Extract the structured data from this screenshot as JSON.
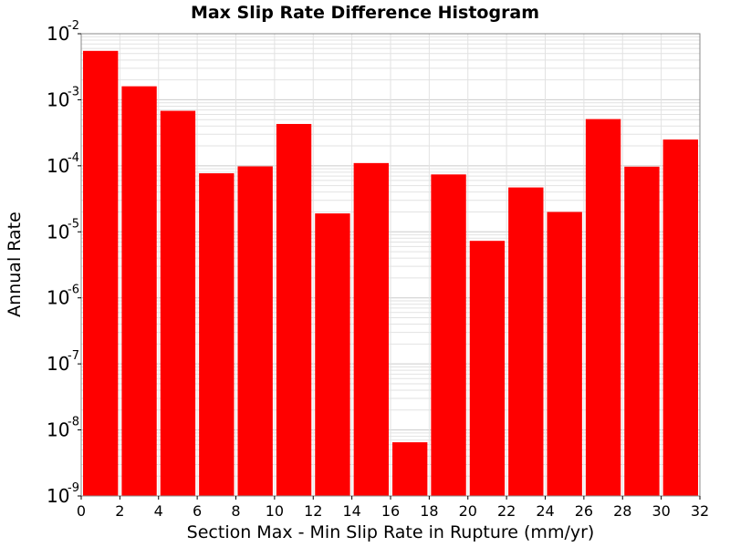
{
  "chart_data": {
    "type": "bar",
    "title": "Max Slip Rate Difference Histogram",
    "xlabel": "Section Max - Min Slip Rate in Rupture (mm/yr)",
    "ylabel": "Annual Rate",
    "yscale": "log",
    "xlim": [
      0,
      32
    ],
    "ylim": [
      1e-09,
      0.01
    ],
    "x_ticks": [
      "0",
      "2",
      "4",
      "6",
      "8",
      "10",
      "12",
      "14",
      "16",
      "18",
      "20",
      "22",
      "24",
      "26",
      "28",
      "30",
      "32"
    ],
    "y_ticks": [
      {
        "base": "10",
        "exp": "-9",
        "value": 1e-09
      },
      {
        "base": "10",
        "exp": "-8",
        "value": 1e-08
      },
      {
        "base": "10",
        "exp": "-7",
        "value": 1e-07
      },
      {
        "base": "10",
        "exp": "-6",
        "value": 1e-06
      },
      {
        "base": "10",
        "exp": "-5",
        "value": 1e-05
      },
      {
        "base": "10",
        "exp": "-4",
        "value": 0.0001
      },
      {
        "base": "10",
        "exp": "-3",
        "value": 0.001
      },
      {
        "base": "10",
        "exp": "-2",
        "value": 0.01
      }
    ],
    "bin_width": 2,
    "bins": [
      {
        "x": 1,
        "value": 0.0055
      },
      {
        "x": 3,
        "value": 0.0016
      },
      {
        "x": 5,
        "value": 0.00068
      },
      {
        "x": 7,
        "value": 7.7e-05
      },
      {
        "x": 9,
        "value": 9.8e-05
      },
      {
        "x": 11,
        "value": 0.00043
      },
      {
        "x": 13,
        "value": 1.9e-05
      },
      {
        "x": 15,
        "value": 0.00011
      },
      {
        "x": 17,
        "value": 6.5e-09
      },
      {
        "x": 19,
        "value": 7.4e-05
      },
      {
        "x": 21,
        "value": 7.3e-06
      },
      {
        "x": 23,
        "value": 4.7e-05
      },
      {
        "x": 25,
        "value": 2e-05
      },
      {
        "x": 27,
        "value": 0.00051
      },
      {
        "x": 29,
        "value": 9.7e-05
      },
      {
        "x": 31,
        "value": 0.00025
      }
    ],
    "grid": true,
    "colors": {
      "bar": "#ff0000",
      "background": "#ffffff",
      "grid": "#e2e2e2",
      "axis": "#000000"
    }
  }
}
